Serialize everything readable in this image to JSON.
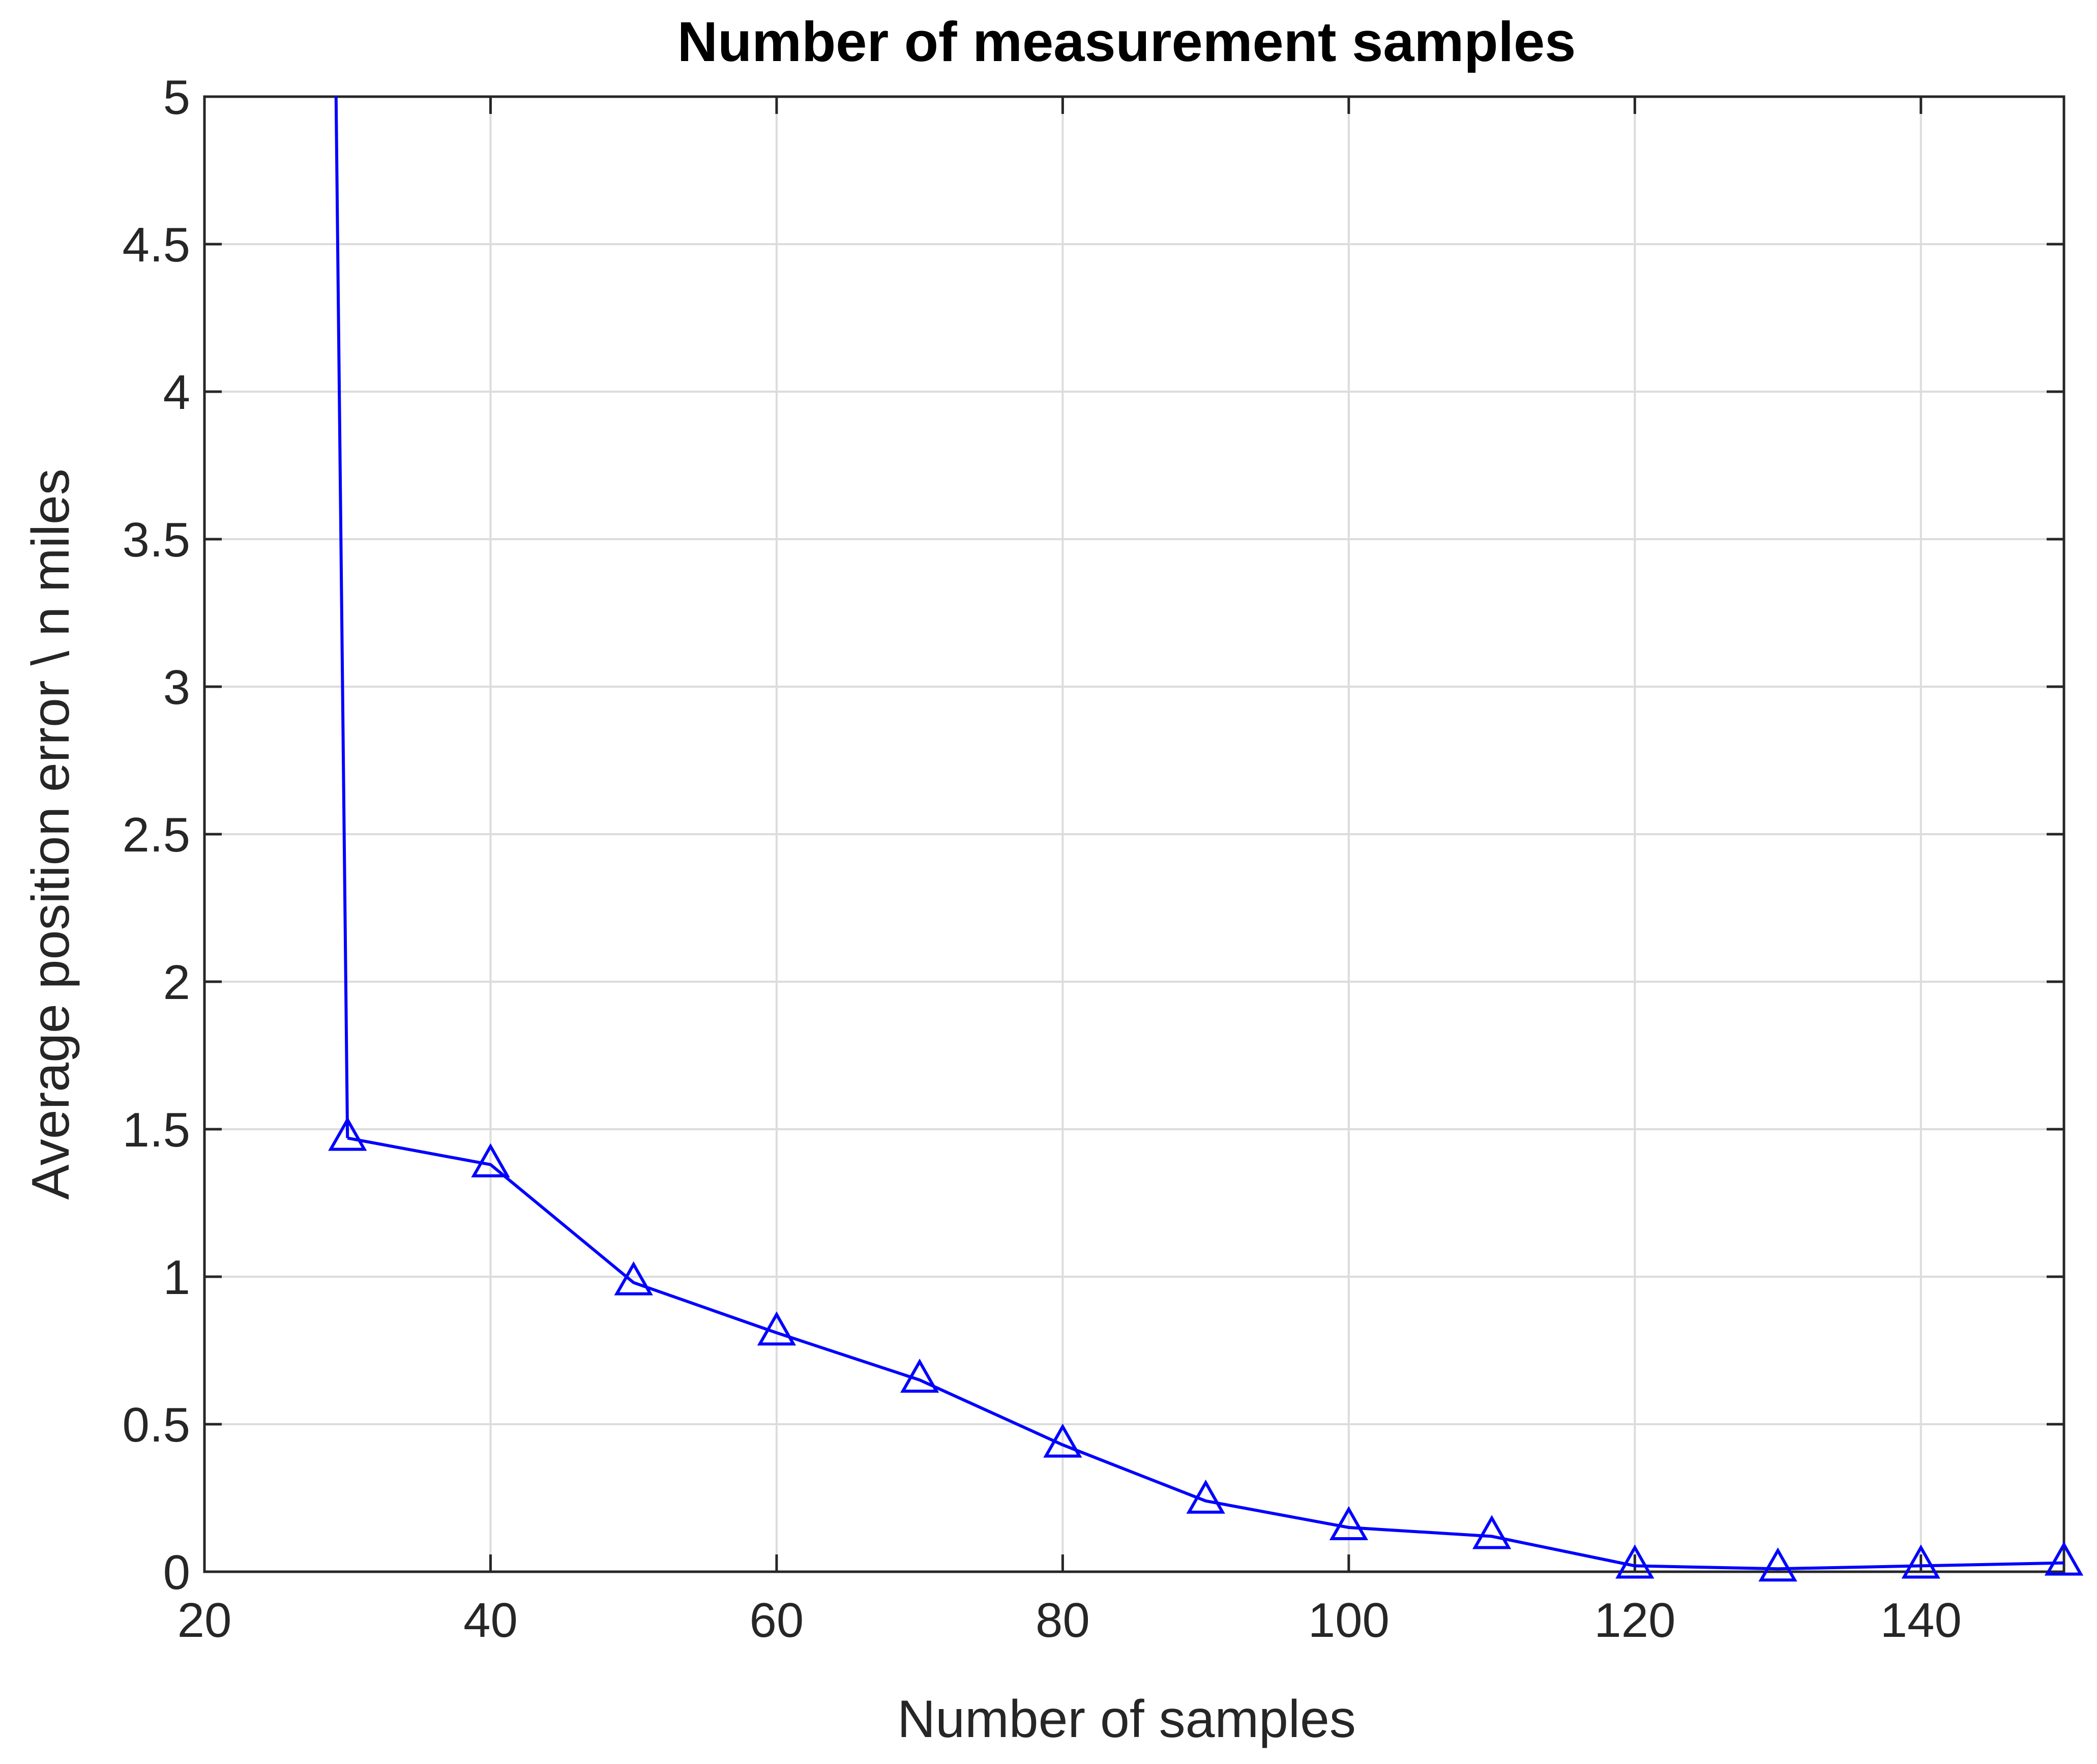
{
  "chart_data": {
    "type": "line",
    "title": "Number of measurement samples",
    "xlabel": "Number of samples",
    "ylabel": "Average position error \\ n miles",
    "xlim": [
      20,
      150
    ],
    "ylim": [
      0,
      5
    ],
    "xticks": [
      20,
      40,
      60,
      80,
      100,
      120,
      140
    ],
    "yticks": [
      0,
      0.5,
      1,
      1.5,
      2,
      2.5,
      3,
      3.5,
      4,
      4.5,
      5
    ],
    "xtick_labels": [
      "20",
      "40",
      "60",
      "80",
      "100",
      "120",
      "140"
    ],
    "ytick_labels": [
      "0",
      "0.5",
      "1",
      "1.5",
      "2",
      "2.5",
      "3",
      "3.5",
      "4",
      "4.5",
      "5"
    ],
    "grid": true,
    "series": [
      {
        "color": "#0000FF",
        "marker": "triangle",
        "x": [
          30,
          40,
          50,
          60,
          70,
          80,
          90,
          100,
          110,
          120,
          130,
          140,
          150
        ],
        "y": [
          1.47,
          1.38,
          0.98,
          0.81,
          0.65,
          0.43,
          0.24,
          0.15,
          0.12,
          0.02,
          0.01,
          0.02,
          0.03
        ],
        "off_axis_segment": {
          "x": [
            29.2,
            30
          ],
          "y": [
            5.0,
            1.47
          ]
        }
      }
    ]
  },
  "colors": {
    "line": "#0000FF",
    "grid": "#DCDCDC",
    "axes": "#262626",
    "background": "#FFFFFF"
  }
}
